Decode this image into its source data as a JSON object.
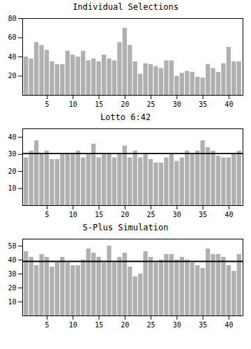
{
  "chart_data": [
    {
      "type": "bar",
      "title": "Individual Selections",
      "x": [
        1,
        2,
        3,
        4,
        5,
        6,
        7,
        8,
        9,
        10,
        11,
        12,
        13,
        14,
        15,
        16,
        17,
        18,
        19,
        20,
        21,
        22,
        23,
        24,
        25,
        26,
        27,
        28,
        29,
        30,
        31,
        32,
        33,
        34,
        35,
        36,
        37,
        38,
        39,
        40,
        41,
        42
      ],
      "values": [
        40,
        38,
        55,
        52,
        47,
        35,
        32,
        32,
        46,
        42,
        40,
        46,
        36,
        38,
        35,
        42,
        38,
        36,
        55,
        70,
        52,
        35,
        22,
        33,
        32,
        30,
        28,
        36,
        36,
        20,
        23,
        25,
        24,
        19,
        18,
        32,
        28,
        24,
        33,
        50,
        35,
        35
      ],
      "color": "#b0b0b0",
      "xlim": [
        0.3,
        42.7
      ],
      "xticks": [
        5,
        10,
        15,
        20,
        25,
        30,
        35,
        40
      ],
      "ylim": [
        0,
        80
      ],
      "yticks": [
        20,
        40,
        60,
        80
      ],
      "grid": false
    },
    {
      "type": "bar",
      "title": "Lotto 6:42",
      "x": [
        1,
        2,
        3,
        4,
        5,
        6,
        7,
        8,
        9,
        10,
        11,
        12,
        13,
        14,
        15,
        16,
        17,
        18,
        19,
        20,
        21,
        22,
        23,
        24,
        25,
        26,
        27,
        28,
        29,
        30,
        31,
        32,
        33,
        34,
        35,
        36,
        37,
        38,
        39,
        40,
        41,
        42
      ],
      "values": [
        28,
        32,
        38,
        30,
        32,
        27,
        27,
        30,
        30,
        30,
        32,
        28,
        30,
        36,
        28,
        30,
        30,
        28,
        30,
        35,
        28,
        32,
        28,
        30,
        27,
        25,
        25,
        28,
        30,
        26,
        28,
        32,
        30,
        32,
        38,
        34,
        32,
        29,
        28,
        28,
        30,
        32
      ],
      "expected": 30.5,
      "color": "#b0b0b0",
      "xlim": [
        0.3,
        42.7
      ],
      "xticks": [
        5,
        10,
        15,
        20,
        25,
        30,
        35,
        40
      ],
      "ylim": [
        0,
        45
      ],
      "yticks": [
        10,
        20,
        30,
        40
      ],
      "grid": false
    },
    {
      "type": "bar",
      "title": "S-Plus Simulation",
      "x": [
        1,
        2,
        3,
        4,
        5,
        6,
        7,
        8,
        9,
        10,
        11,
        12,
        13,
        14,
        15,
        16,
        17,
        18,
        19,
        20,
        21,
        22,
        23,
        24,
        25,
        26,
        27,
        28,
        29,
        30,
        31,
        32,
        33,
        34,
        35,
        36,
        37,
        38,
        39,
        40,
        41,
        42
      ],
      "values": [
        46,
        42,
        36,
        44,
        42,
        35,
        38,
        42,
        38,
        36,
        36,
        40,
        48,
        45,
        42,
        38,
        50,
        38,
        42,
        45,
        35,
        28,
        30,
        46,
        42,
        38,
        40,
        44,
        44,
        40,
        42,
        40,
        38,
        36,
        34,
        48,
        44,
        44,
        42,
        36,
        32,
        44
      ],
      "expected": 39.0,
      "color": "#b0b0b0",
      "xlim": [
        0.3,
        42.7
      ],
      "xticks": [
        5,
        10,
        15,
        20,
        25,
        30,
        35,
        40
      ],
      "ylim": [
        0,
        55
      ],
      "yticks": [
        10,
        20,
        30,
        40,
        50
      ],
      "grid": false
    }
  ]
}
